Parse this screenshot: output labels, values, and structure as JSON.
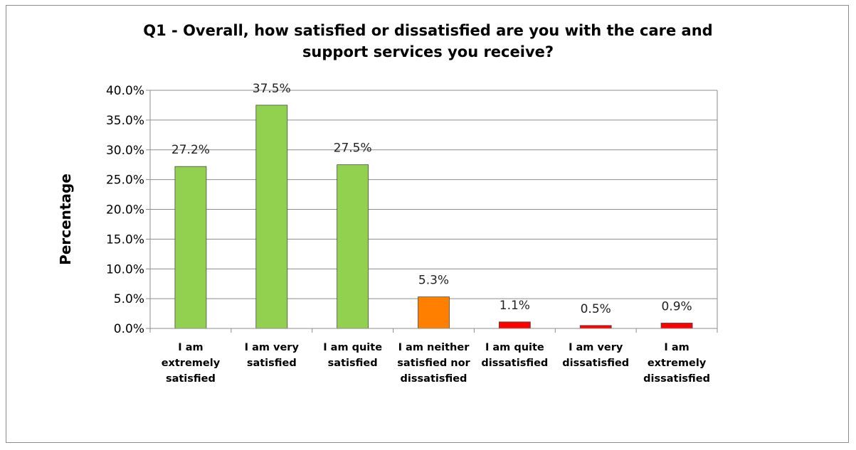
{
  "chart_data": {
    "type": "bar",
    "title_lines": [
      "Q1 - Overall, how satisfied or dissatisfied are you with the care and",
      "support services you receive?"
    ],
    "ylabel": "Percentage",
    "xlabel": "",
    "ylim": [
      0,
      40
    ],
    "yticks": [
      "0.0%",
      "5.0%",
      "10.0%",
      "15.0%",
      "20.0%",
      "25.0%",
      "30.0%",
      "35.0%",
      "40.0%"
    ],
    "grid": true,
    "legend": "none",
    "categories": [
      [
        "I am",
        "extremely",
        "satisfied"
      ],
      [
        "I am very",
        "satisfied"
      ],
      [
        "I am quite",
        "satisfied"
      ],
      [
        "I am neither",
        "satisfied nor",
        "dissatisfied"
      ],
      [
        "I am quite",
        "dissatisfied"
      ],
      [
        "I am very",
        "dissatisfied"
      ],
      [
        "I am",
        "extremely",
        "dissatisfied"
      ]
    ],
    "values": [
      27.2,
      37.5,
      27.5,
      5.3,
      1.1,
      0.5,
      0.9
    ],
    "value_labels": [
      "27.2%",
      "37.5%",
      "27.5%",
      "5.3%",
      "1.1%",
      "0.5%",
      "0.9%"
    ],
    "colors": [
      "#92d050",
      "#92d050",
      "#92d050",
      "#ff8000",
      "#ff0000",
      "#ff0000",
      "#ff0000"
    ]
  }
}
